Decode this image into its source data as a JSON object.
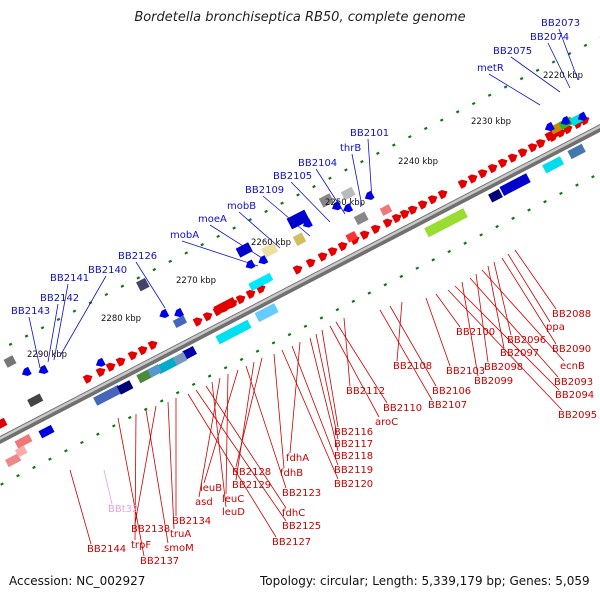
{
  "title": "Bordetella bronchiseptica RB50, complete genome",
  "footer": {
    "accession": "Accession: NC_002927",
    "summary": "Topology: circular; Length: 5,339,179 bp; Genes: 5,059"
  },
  "colors": {
    "forward": "#e30000",
    "reverse": "#0000e6",
    "label_forward": "#1010cc",
    "label_reverse": "#cc0000",
    "tick": "#117711",
    "backbone": "#8a8a8a"
  },
  "ticks": [
    "2220 kbp",
    "2230 kbp",
    "2240 kbp",
    "2250 kbp",
    "2260 kbp",
    "2270 kbp",
    "2280 kbp",
    "2290 kbp"
  ],
  "labels_top": [
    "BB2073",
    "BB2074",
    "BB2075",
    "metR",
    "BB2101",
    "thrB",
    "BB2104",
    "BB2105",
    "BB2109",
    "mobB",
    "moeA",
    "mobA",
    "BB2126",
    "BB2141",
    "BB2140",
    "BB2142",
    "BB2143"
  ],
  "labels_bottom": [
    "BB2088",
    "ppa",
    "BB2090",
    "BB2096",
    "BB2097",
    "ecnB",
    "BB2098",
    "BB2093",
    "BB2099",
    "BB2094",
    "BB2095",
    "BB2100",
    "BB2103",
    "BB2108",
    "BB2106",
    "BB2107",
    "BB2112",
    "BB2110",
    "aroC",
    "BB2116",
    "BB2117",
    "BB2118",
    "fdhA",
    "BB2119",
    "BB2120",
    "fdhB",
    "BB2128",
    "BB2129",
    "BB2123",
    "leuB",
    "leuC",
    "asd",
    "leuD",
    "fdhC",
    "BB2125",
    "BB2127",
    "BB2134",
    "truA",
    "BB2138",
    "smoM",
    "trpF",
    "BB2137",
    "BB2144",
    "BBt32"
  ]
}
